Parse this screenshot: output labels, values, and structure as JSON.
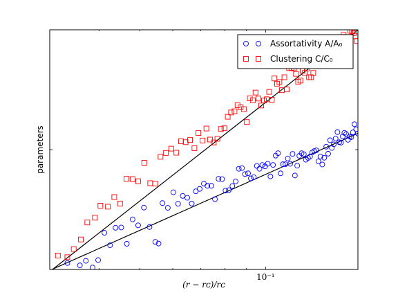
{
  "chart_data": {
    "type": "scatter",
    "title": "",
    "xlabel": "(r − rᴄ)/rᴄ",
    "ylabel": "parameters",
    "x_scale": "log",
    "xlim": [
      0.0305,
      0.1662
    ],
    "ylim": [
      0,
      1
    ],
    "x_tick_labels": [
      {
        "value": 0.1,
        "label": "10⁻¹"
      }
    ],
    "y_ticks": [
      0,
      0.5,
      1
    ],
    "y_tick_labels_shown": false,
    "grid": false,
    "legend_position": "top-right",
    "series": [
      {
        "name": "Assortativity A/A₀",
        "marker": "circle",
        "color": "#0000ff",
        "points": [
          [
            0.0336,
            0.027
          ],
          [
            0.036,
            0.017
          ],
          [
            0.0372,
            0.036
          ],
          [
            0.0386,
            0.008
          ],
          [
            0.0398,
            0.039
          ],
          [
            0.0412,
            0.153
          ],
          [
            0.0425,
            0.101
          ],
          [
            0.0438,
            0.174
          ],
          [
            0.0452,
            0.175
          ],
          [
            0.0466,
            0.107
          ],
          [
            0.0481,
            0.209
          ],
          [
            0.0496,
            0.184
          ],
          [
            0.0512,
            0.258
          ],
          [
            0.0528,
            0.177
          ],
          [
            0.0545,
            0.115
          ],
          [
            0.0555,
            0.108
          ],
          [
            0.0567,
            0.277
          ],
          [
            0.0584,
            0.257
          ],
          [
            0.0602,
            0.322
          ],
          [
            0.0618,
            0.274
          ],
          [
            0.0634,
            0.307
          ],
          [
            0.065,
            0.299
          ],
          [
            0.0666,
            0.275
          ],
          [
            0.0681,
            0.326
          ],
          [
            0.0696,
            0.336
          ],
          [
            0.0712,
            0.358
          ],
          [
            0.0726,
            0.349
          ],
          [
            0.0742,
            0.349
          ],
          [
            0.0757,
            0.293
          ],
          [
            0.0772,
            0.378
          ],
          [
            0.0787,
            0.377
          ],
          [
            0.0802,
            0.329
          ],
          [
            0.0817,
            0.331
          ],
          [
            0.0833,
            0.348
          ],
          [
            0.0848,
            0.367
          ],
          [
            0.0863,
            0.42
          ],
          [
            0.0878,
            0.423
          ],
          [
            0.0893,
            0.398
          ],
          [
            0.0908,
            0.401
          ],
          [
            0.0922,
            0.38
          ],
          [
            0.0937,
            0.385
          ],
          [
            0.0953,
            0.432
          ],
          [
            0.0967,
            0.42
          ],
          [
            0.0982,
            0.436
          ],
          [
            0.0997,
            0.43
          ],
          [
            0.1012,
            0.441
          ],
          [
            0.1027,
            0.388
          ],
          [
            0.1042,
            0.436
          ],
          [
            0.1057,
            0.475
          ],
          [
            0.1071,
            0.485
          ],
          [
            0.1086,
            0.401
          ],
          [
            0.11,
            0.439
          ],
          [
            0.1115,
            0.439
          ],
          [
            0.113,
            0.463
          ],
          [
            0.1145,
            0.441
          ],
          [
            0.116,
            0.482
          ],
          [
            0.1175,
            0.392
          ],
          [
            0.119,
            0.433
          ],
          [
            0.1204,
            0.474
          ],
          [
            0.1219,
            0.485
          ],
          [
            0.1234,
            0.481
          ],
          [
            0.1248,
            0.458
          ],
          [
            0.1263,
            0.465
          ],
          [
            0.1277,
            0.471
          ],
          [
            0.1292,
            0.488
          ],
          [
            0.1307,
            0.494
          ],
          [
            0.1322,
            0.497
          ],
          [
            0.1337,
            0.451
          ],
          [
            0.1352,
            0.471
          ],
          [
            0.1366,
            0.438
          ],
          [
            0.1381,
            0.466
          ],
          [
            0.1396,
            0.512
          ],
          [
            0.1411,
            0.483
          ],
          [
            0.1426,
            0.539
          ],
          [
            0.144,
            0.507
          ],
          [
            0.1455,
            0.522
          ],
          [
            0.147,
            0.546
          ],
          [
            0.1485,
            0.573
          ],
          [
            0.15,
            0.531
          ],
          [
            0.1514,
            0.529
          ],
          [
            0.1529,
            0.555
          ],
          [
            0.1543,
            0.57
          ],
          [
            0.1558,
            0.565
          ],
          [
            0.1573,
            0.541
          ],
          [
            0.1587,
            0.554
          ],
          [
            0.1602,
            0.552
          ],
          [
            0.1617,
            0.572
          ],
          [
            0.1631,
            0.606
          ],
          [
            0.1646,
            0.585
          ],
          [
            0.1661,
            0.567
          ]
        ],
        "fit": [
          [
            0.0305,
            -0.004
          ],
          [
            0.1662,
            0.568
          ]
        ]
      },
      {
        "name": "Clustering C/C₀",
        "marker": "square",
        "color": "#ff0000",
        "points": [
          [
            0.0319,
            0.058
          ],
          [
            0.0336,
            0.051
          ],
          [
            0.0348,
            0.085
          ],
          [
            0.0362,
            0.125
          ],
          [
            0.0375,
            0.196
          ],
          [
            0.0391,
            0.216
          ],
          [
            0.0403,
            0.266
          ],
          [
            0.042,
            0.262
          ],
          [
            0.0435,
            0.302
          ],
          [
            0.0449,
            0.275
          ],
          [
            0.0465,
            0.378
          ],
          [
            0.0481,
            0.377
          ],
          [
            0.0496,
            0.368
          ],
          [
            0.0513,
            0.445
          ],
          [
            0.053,
            0.36
          ],
          [
            0.0545,
            0.358
          ],
          [
            0.0561,
            0.47
          ],
          [
            0.0578,
            0.486
          ],
          [
            0.0595,
            0.504
          ],
          [
            0.0612,
            0.487
          ],
          [
            0.0628,
            0.535
          ],
          [
            0.0644,
            0.531
          ],
          [
            0.066,
            0.54
          ],
          [
            0.0676,
            0.506
          ],
          [
            0.0691,
            0.569
          ],
          [
            0.0707,
            0.538
          ],
          [
            0.0722,
            0.588
          ],
          [
            0.0737,
            0.542
          ],
          [
            0.0752,
            0.53
          ],
          [
            0.0767,
            0.545
          ],
          [
            0.0782,
            0.586
          ],
          [
            0.0797,
            0.589
          ],
          [
            0.0812,
            0.637
          ],
          [
            0.0827,
            0.655
          ],
          [
            0.0843,
            0.66
          ],
          [
            0.0857,
            0.685
          ],
          [
            0.0872,
            0.677
          ],
          [
            0.0887,
            0.669
          ],
          [
            0.0902,
            0.615
          ],
          [
            0.0917,
            0.714
          ],
          [
            0.0932,
            0.706
          ],
          [
            0.0946,
            0.738
          ],
          [
            0.0961,
            0.713
          ],
          [
            0.0976,
            0.684
          ],
          [
            0.0991,
            0.705
          ],
          [
            0.1006,
            0.71
          ],
          [
            0.102,
            0.741
          ],
          [
            0.1035,
            0.708
          ],
          [
            0.105,
            0.797
          ],
          [
            0.1065,
            0.775
          ],
          [
            0.1079,
            0.782
          ],
          [
            0.1094,
            0.748
          ],
          [
            0.1109,
            0.802
          ],
          [
            0.1123,
            0.751
          ],
          [
            0.1138,
            0.84
          ],
          [
            0.1153,
            0.841
          ],
          [
            0.1167,
            0.839
          ],
          [
            0.1182,
            0.816
          ],
          [
            0.1196,
            0.783
          ],
          [
            0.1211,
            0.788
          ],
          [
            0.1226,
            0.829
          ],
          [
            0.1241,
            0.82
          ],
          [
            0.1255,
            0.838
          ],
          [
            0.127,
            0.802
          ],
          [
            0.1285,
            0.802
          ],
          [
            0.13,
            0.82
          ],
          [
            0.1314,
            0.88
          ],
          [
            0.1329,
            0.884
          ],
          [
            0.1344,
            0.894
          ],
          [
            0.1358,
            0.895
          ],
          [
            0.1373,
            0.913
          ],
          [
            0.1388,
            0.932
          ],
          [
            0.1403,
            0.905
          ],
          [
            0.1418,
            0.923
          ],
          [
            0.1432,
            0.956
          ],
          [
            0.1447,
            0.912
          ],
          [
            0.1462,
            0.958
          ],
          [
            0.1477,
            0.967
          ],
          [
            0.1492,
            0.934
          ],
          [
            0.1507,
            0.963
          ],
          [
            0.1521,
            0.966
          ],
          [
            0.1536,
            0.978
          ],
          [
            0.155,
            0.97
          ],
          [
            0.1565,
            0.952
          ],
          [
            0.158,
            1.025
          ],
          [
            0.1594,
            0.996
          ],
          [
            0.1609,
            0.993
          ],
          [
            0.1624,
            0.986
          ],
          [
            0.1639,
            0.973
          ],
          [
            0.1653,
            0.953
          ]
        ],
        "fit": [
          [
            0.0305,
            -0.009
          ],
          [
            0.1662,
            0.999
          ]
        ]
      }
    ]
  }
}
